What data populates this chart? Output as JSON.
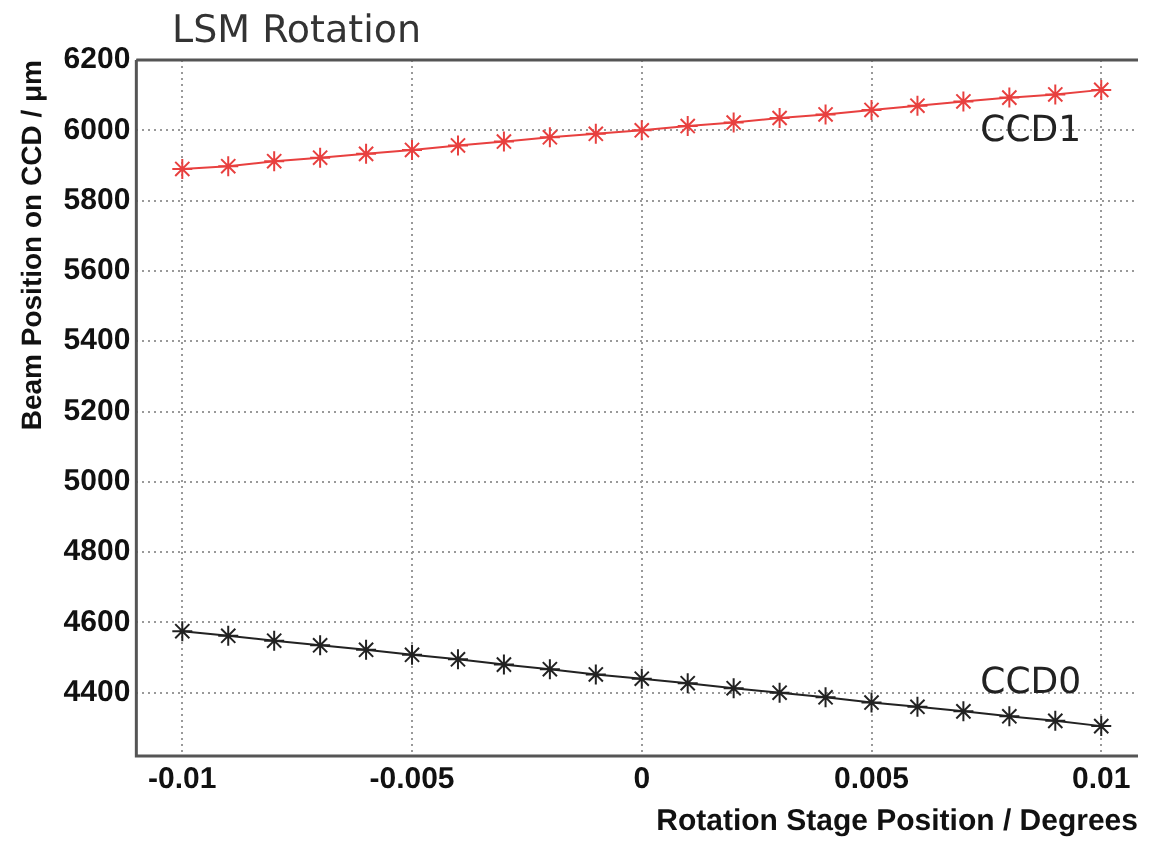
{
  "chart_data": {
    "type": "line",
    "title": "LSM Rotation",
    "xlabel": "Rotation Stage Position / Degrees",
    "ylabel": "Beam Position on CCD / μm",
    "x": [
      -0.01,
      -0.009,
      -0.008,
      -0.007,
      -0.006,
      -0.005,
      -0.004,
      -0.003,
      -0.002,
      -0.001,
      0,
      0.001,
      0.002,
      0.003,
      0.004,
      0.005,
      0.006,
      0.007,
      0.008,
      0.009,
      0.01
    ],
    "series": [
      {
        "name": "CCD1",
        "color": "#e8403f",
        "values": [
          5890,
          5898,
          5912,
          5922,
          5933,
          5944,
          5957,
          5968,
          5980,
          5990,
          6000,
          6012,
          6022,
          6035,
          6045,
          6058,
          6070,
          6082,
          6093,
          6102,
          6115
        ]
      },
      {
        "name": "CCD0",
        "color": "#222222",
        "values": [
          4575,
          4562,
          4548,
          4535,
          4522,
          4508,
          4495,
          4480,
          4467,
          4452,
          4440,
          4427,
          4413,
          4400,
          4387,
          4372,
          4360,
          4347,
          4333,
          4320,
          4305
        ]
      }
    ],
    "xlim": [
      -0.011,
      0.0108
    ],
    "xticks": [
      -0.01,
      -0.005,
      0,
      0.005,
      0.01
    ],
    "ylim": [
      4220,
      6200
    ],
    "yticks": [
      4400,
      4600,
      4800,
      5000,
      5200,
      5400,
      5600,
      5800,
      6000,
      6200
    ],
    "grid": true,
    "marker": "cross",
    "line_style": "solid",
    "legend": false
  }
}
